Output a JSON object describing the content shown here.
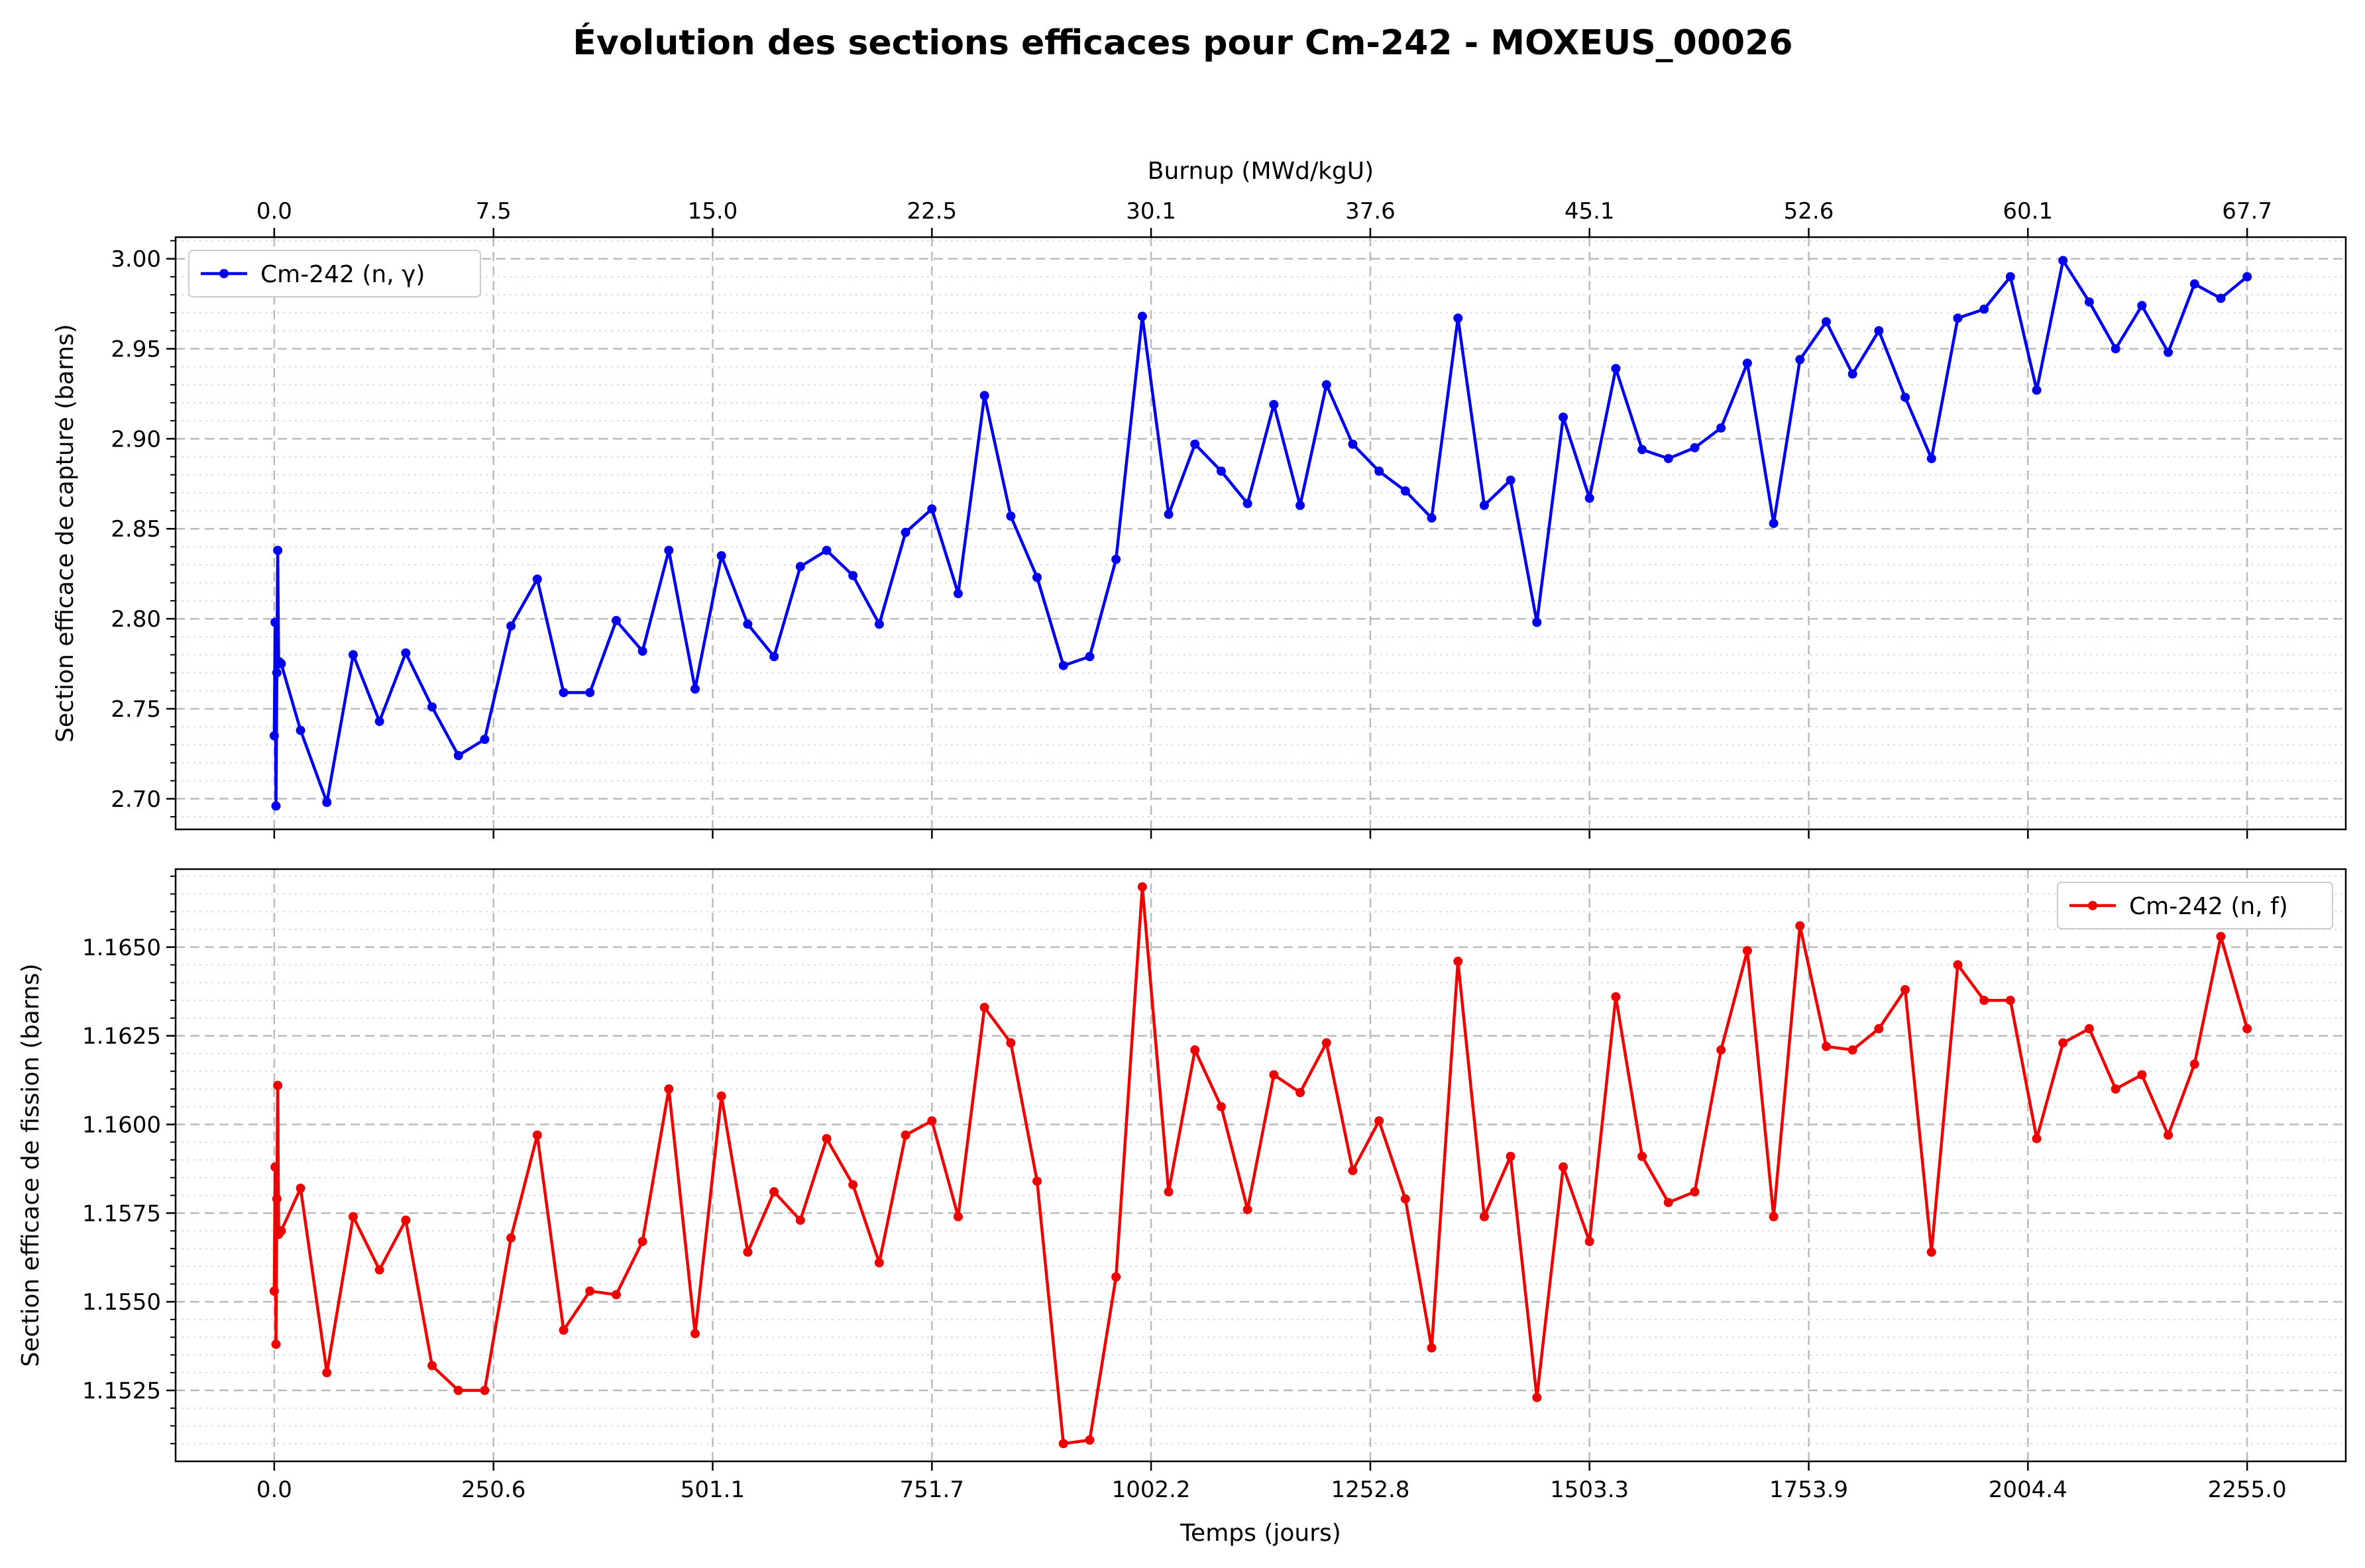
{
  "chart_data": {
    "type": "line",
    "title": "Évolution des sections efficaces pour Cm-242 - MOXEUS_00026",
    "shared_x": {
      "label": "Temps (jours)",
      "ticks": [
        "0.0",
        "250.6",
        "501.1",
        "751.7",
        "1002.2",
        "1252.8",
        "1503.3",
        "1753.9",
        "2004.4",
        "2255.0"
      ],
      "range": [
        -112.75,
        2367.75
      ]
    },
    "secondary_x": {
      "label": "Burnup (MWd/kgU)",
      "ticks": [
        "0.0",
        "7.5",
        "15.0",
        "22.5",
        "30.1",
        "37.6",
        "45.1",
        "52.6",
        "60.1",
        "67.7"
      ]
    },
    "x": [
      0,
      1,
      2,
      3,
      4,
      5,
      6,
      7,
      8,
      30.07,
      60.13,
      90.2,
      120.27,
      150.33,
      180.4,
      210.47,
      240.53,
      270.6,
      300.67,
      330.73,
      360.8,
      390.87,
      420.93,
      451.0,
      481.07,
      511.13,
      541.2,
      571.27,
      601.33,
      631.4,
      661.47,
      691.53,
      721.6,
      751.67,
      781.73,
      811.8,
      841.87,
      871.93,
      902.0,
      932.07,
      962.13,
      992.2,
      1022.27,
      1052.33,
      1082.4,
      1112.47,
      1142.53,
      1172.6,
      1202.67,
      1232.73,
      1262.8,
      1292.87,
      1322.93,
      1353.0,
      1383.07,
      1413.13,
      1443.2,
      1473.27,
      1503.33,
      1533.4,
      1563.47,
      1593.53,
      1623.6,
      1653.67,
      1683.73,
      1713.8,
      1743.87,
      1773.93,
      1804.0,
      1834.07,
      1864.13,
      1894.2,
      1924.27,
      1954.33,
      1984.4,
      2014.47,
      2044.53,
      2074.6,
      2104.67,
      2134.73,
      2164.8,
      2194.87,
      2224.93,
      2255.0
    ],
    "subplots": [
      {
        "ylabel": "Section efficace de capture (barns)",
        "ylim": [
          2.683,
          3.012
        ],
        "yticks": [
          "2.70",
          "2.75",
          "2.80",
          "2.85",
          "2.90",
          "2.95",
          "3.00"
        ],
        "legend_position": "top-left",
        "color": "#0000ee",
        "series": [
          {
            "name": "Cm-242 (n, γ)",
            "values": [
              2.735,
              2.798,
              2.696,
              2.77,
              2.838,
              2.775,
              2.776,
              2.775,
              2.775,
              2.738,
              2.698,
              2.78,
              2.743,
              2.781,
              2.751,
              2.724,
              2.733,
              2.796,
              2.822,
              2.759,
              2.759,
              2.799,
              2.782,
              2.838,
              2.761,
              2.835,
              2.797,
              2.779,
              2.829,
              2.838,
              2.824,
              2.797,
              2.848,
              2.861,
              2.814,
              2.924,
              2.857,
              2.823,
              2.774,
              2.779,
              2.833,
              2.968,
              2.858,
              2.897,
              2.882,
              2.864,
              2.919,
              2.863,
              2.93,
              2.897,
              2.882,
              2.871,
              2.856,
              2.967,
              2.863,
              2.877,
              2.798,
              2.912,
              2.867,
              2.939,
              2.894,
              2.889,
              2.895,
              2.906,
              2.942,
              2.853,
              2.944,
              2.965,
              2.936,
              2.96,
              2.923,
              2.889,
              2.967,
              2.972,
              2.99,
              2.927,
              2.999,
              2.976,
              2.95,
              2.974,
              2.948,
              2.986,
              2.978,
              2.99
            ]
          }
        ]
      },
      {
        "ylabel": "Section efficace de fission (barns)",
        "ylim": [
          1.1505,
          1.1672
        ],
        "yticks": [
          "1.1525",
          "1.1550",
          "1.1575",
          "1.1600",
          "1.1625",
          "1.1650"
        ],
        "legend_position": "top-right",
        "color": "#ee0000",
        "series": [
          {
            "name": "Cm-242 (n, f)",
            "values": [
              1.1553,
              1.1588,
              1.1538,
              1.1579,
              1.1611,
              1.1569,
              1.157,
              1.157,
              1.157,
              1.1582,
              1.153,
              1.1574,
              1.1559,
              1.1573,
              1.1532,
              1.1525,
              1.1525,
              1.1568,
              1.1597,
              1.1542,
              1.1553,
              1.1552,
              1.1567,
              1.161,
              1.1541,
              1.1608,
              1.1564,
              1.1581,
              1.1573,
              1.1596,
              1.1583,
              1.1561,
              1.1597,
              1.1601,
              1.1574,
              1.1633,
              1.1623,
              1.1584,
              1.151,
              1.1511,
              1.1557,
              1.1667,
              1.1581,
              1.1621,
              1.1605,
              1.1576,
              1.1614,
              1.1609,
              1.1623,
              1.1587,
              1.1601,
              1.1579,
              1.1537,
              1.1646,
              1.1574,
              1.1591,
              1.1523,
              1.1588,
              1.1567,
              1.1636,
              1.1591,
              1.1578,
              1.1581,
              1.1621,
              1.1649,
              1.1574,
              1.1656,
              1.1622,
              1.1621,
              1.1627,
              1.1638,
              1.1564,
              1.1645,
              1.1635,
              1.1635,
              1.1596,
              1.1623,
              1.1627,
              1.161,
              1.1614,
              1.1597,
              1.1617,
              1.1653,
              1.1627
            ]
          }
        ]
      }
    ]
  }
}
